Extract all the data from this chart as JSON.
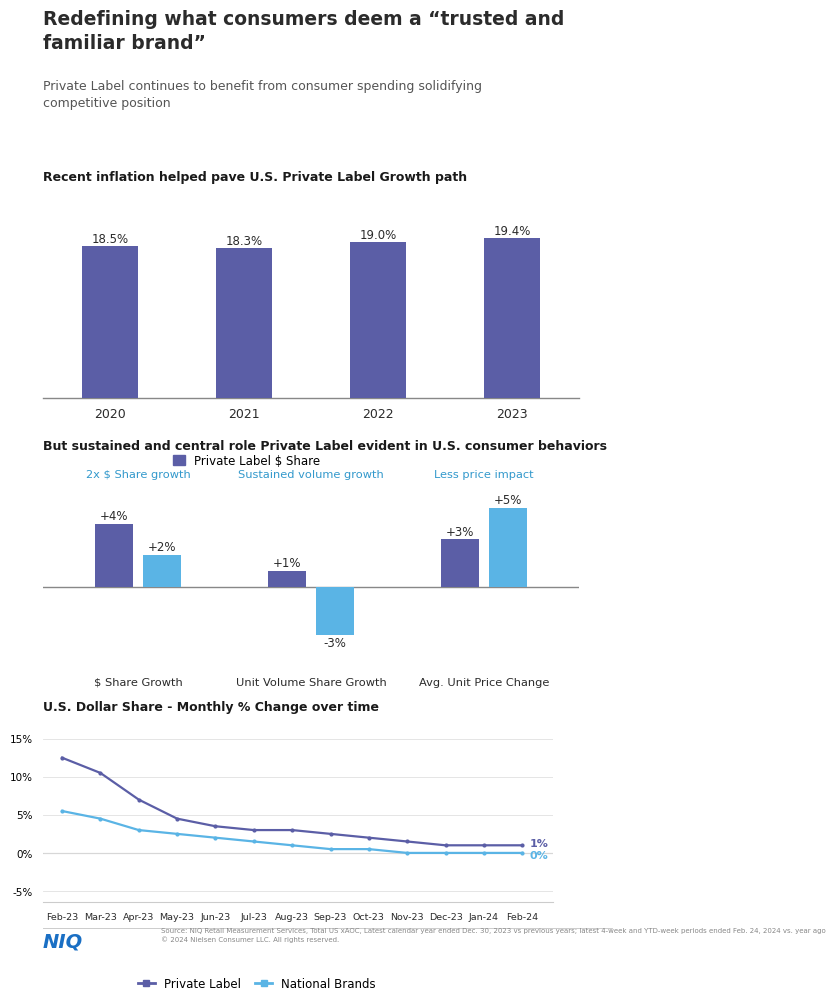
{
  "title": "Redefining what consumers deem a “trusted and\nfamiliar brand”",
  "subtitle": "Private Label continues to benefit from consumer spending solidifying\ncompetitive position",
  "chart1_title": "Recent inflation helped pave U.S. Private Label Growth path",
  "chart1_years": [
    "2020",
    "2021",
    "2022",
    "2023"
  ],
  "chart1_values": [
    18.5,
    18.3,
    19.0,
    19.4
  ],
  "chart1_color": "#5b5ea6",
  "chart1_legend": "Private Label $ Share",
  "chart2_title": "But sustained and central role Private Label evident in U.S. consumer behaviors",
  "chart2_group_labels": [
    "$ Share Growth",
    "Unit Volume Share Growth",
    "Avg. Unit Price Change"
  ],
  "chart2_group_titles": [
    "2x $ Share growth",
    "Sustained volume growth",
    "Less price impact"
  ],
  "chart2_pl_values": [
    4,
    1,
    3
  ],
  "chart2_nb_values": [
    2,
    -3,
    5
  ],
  "chart2_pl_color": "#5b5ea6",
  "chart2_nb_color": "#5ab4e5",
  "chart2_legend_pl": "Private Label",
  "chart2_legend_nb": "National Brands",
  "chart3_title": "U.S. Dollar Share - Monthly % Change over time",
  "chart3_months": [
    "Feb-23",
    "Mar-23",
    "Apr-23",
    "May-23",
    "Jun-23",
    "Jul-23",
    "Aug-23",
    "Sep-23",
    "Oct-23",
    "Nov-23",
    "Dec-23",
    "Jan-24",
    "Feb-24"
  ],
  "chart3_pl_values": [
    12.5,
    10.5,
    7.0,
    4.5,
    3.5,
    3.0,
    3.0,
    2.5,
    2.0,
    1.5,
    1.0,
    1.0,
    1.0
  ],
  "chart3_nb_values": [
    5.5,
    4.5,
    3.0,
    2.5,
    2.0,
    1.5,
    1.0,
    0.5,
    0.5,
    0.0,
    0.0,
    0.0,
    0.0
  ],
  "chart3_pl_color": "#5b5ea6",
  "chart3_nb_color": "#5ab4e5",
  "chart3_legend_pl": "Private Label",
  "chart3_legend_nb": "National Brands",
  "chart3_pl_end_label": "1%",
  "chart3_nb_end_label": "0%",
  "footer_text": "Source: NIQ Retail Measurement Services, Total US xAOC, Latest calendar year ended Dec. 30, 2023 vs previous years; latest 4-week and YTD-week periods ended Feb. 24, 2024 vs. year ago\n© 2024 Nielsen Consumer LLC. All rights reserved.",
  "niq_logo": "NIQ",
  "bg_color": "#ffffff",
  "title_color": "#2b2b2b",
  "subtitle_color": "#555555",
  "section_title_color": "#1a1a1a",
  "group_title_color": "#3399cc"
}
